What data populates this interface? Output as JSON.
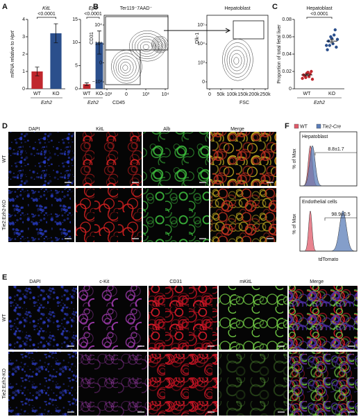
{
  "panel_letters": [
    "A",
    "B",
    "C",
    "D",
    "E",
    "F"
  ],
  "chart_data": [
    {
      "type": "bar",
      "title": "KitL",
      "y_label": {
        "text": "mRNA relative to ",
        "italic": "Hprt"
      },
      "x_label": "Ezh2",
      "annotation": "<0.0001",
      "categories": [
        "WT",
        "KO"
      ],
      "values": [
        1.0,
        3.2
      ],
      "errors": [
        0.25,
        0.55
      ],
      "colors": [
        "#c0272d",
        "#2b4f8c"
      ],
      "ylim": [
        0,
        4
      ],
      "yticks": [
        0,
        1,
        2,
        3,
        4
      ]
    },
    {
      "type": "bar",
      "title": "Epo",
      "x_label": "Ezh2",
      "annotation": "<0.0001",
      "categories": [
        "WT",
        "KO"
      ],
      "values": [
        1.0,
        10.0
      ],
      "errors": [
        0.3,
        2.5
      ],
      "colors": [
        "#c0272d",
        "#2b4f8c"
      ],
      "ylim": [
        0,
        15
      ],
      "yticks": [
        0,
        5,
        10,
        15
      ]
    },
    {
      "type": "scatter",
      "title": "Hepatoblast",
      "y_label": {
        "text": "Proportion of total fetal liver"
      },
      "x_label": "Ezh2",
      "annotation": "<0.0001",
      "categories": [
        "WT",
        "KO"
      ],
      "colors": [
        "#c0272d",
        "#2b4f8c"
      ],
      "values": [
        [
          0.012,
          0.015,
          0.018,
          0.014,
          0.02,
          0.016,
          0.013,
          0.019,
          0.017,
          0.011
        ],
        [
          0.045,
          0.05,
          0.058,
          0.062,
          0.048,
          0.055,
          0.06,
          0.052,
          0.068,
          0.057,
          0.05
        ]
      ],
      "means": [
        0.016,
        0.055
      ],
      "sems": [
        0.001,
        0.002
      ],
      "ylim": [
        0,
        0.08
      ],
      "yticks": [
        0,
        0.02,
        0.04,
        0.06,
        0.08
      ]
    }
  ],
  "flow_plots": [
    {
      "title": "Ter119⁻7AAD⁻",
      "x_label": "CD45",
      "y_label": "CD31",
      "xticks": [
        "−10³",
        "0",
        "10³",
        "10⁴"
      ],
      "yticks": [
        "−10³",
        "0",
        "10³",
        "10⁴"
      ]
    },
    {
      "title": "Hepatoblast",
      "x_label": "FSC",
      "y_label": "Dlk-1",
      "xticks": [
        "0",
        "50k",
        "100k",
        "150k",
        "200k",
        "250k"
      ],
      "yticks": [
        "0",
        "10³",
        "10⁴",
        "10⁵"
      ]
    }
  ],
  "panel_d": {
    "columns": [
      "DAPI",
      "KitL",
      "Alb",
      "Merge"
    ],
    "rows": [
      "WT",
      "Tie2:Ezh2-KO"
    ]
  },
  "panel_e": {
    "columns": [
      "DAPI",
      "c-Kit",
      "CD31",
      "mKitL",
      "Merge"
    ],
    "rows": [
      "WT",
      "Tie2:Ezh2-KO"
    ]
  },
  "panel_f": {
    "legend": [
      {
        "name": "WT",
        "color": "#e05a6a"
      },
      {
        "name": "Tie2-Cre",
        "color": "#5b7db8"
      }
    ],
    "y_label": "% of Max",
    "x_label": "tdTomato",
    "plots": [
      {
        "title": "Hepatoblast",
        "annotation": "8.8±1.7"
      },
      {
        "title": "Endothelial cells",
        "annotation": "98.9±0.5"
      }
    ]
  }
}
